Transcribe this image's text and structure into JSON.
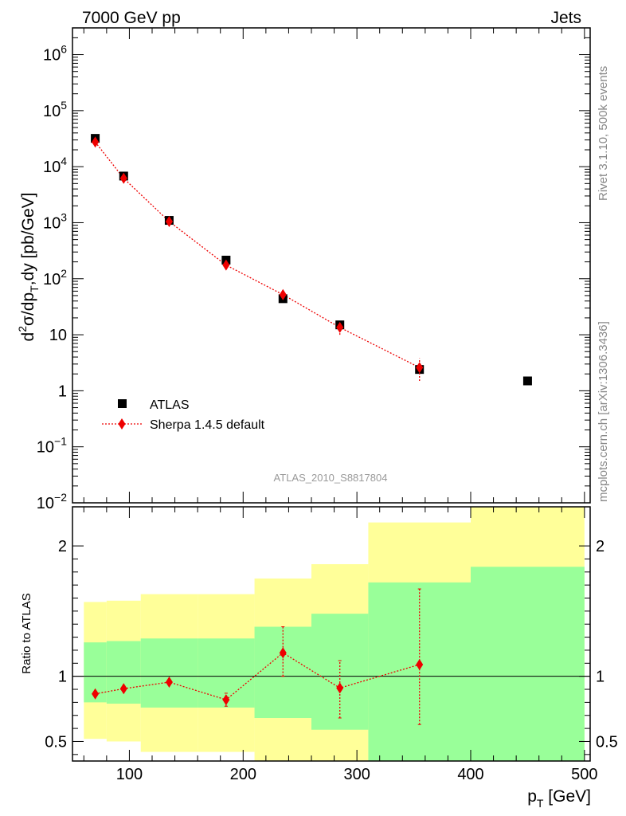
{
  "header": {
    "left": "7000 GeV pp",
    "right": "Jets"
  },
  "side": {
    "rivet": "Rivet 3.1.10,  500k events",
    "mcplots": "mcplots.cern.ch [arXiv:1306.3436]"
  },
  "analysis_label": "ATLAS_2010_S8817804",
  "colors": {
    "data": "#000000",
    "mc": "#ee0000",
    "band_outer": "#ffff99",
    "band_inner": "#99ff99"
  },
  "chart_data": [
    {
      "type": "scatter",
      "y_scale": "log",
      "ylabel": "d²σ/dp_T,dy [pb/GeV]",
      "ylim": [
        0.01,
        3000000
      ],
      "x_range": [
        50,
        505
      ],
      "y_ticks": [
        {
          "value": 1000000,
          "label": "10^6"
        },
        {
          "value": 100000,
          "label": "10^5"
        },
        {
          "value": 10000,
          "label": "10^4"
        },
        {
          "value": 1000,
          "label": "10^3"
        },
        {
          "value": 100,
          "label": "10^2"
        },
        {
          "value": 10,
          "label": "10"
        },
        {
          "value": 1,
          "label": "1"
        },
        {
          "value": 0.1,
          "label": "10^-1"
        },
        {
          "value": 0.01,
          "label": "10^-2"
        }
      ],
      "legend_position": "bottom-left",
      "series": [
        {
          "name": "ATLAS",
          "marker": "square",
          "points": [
            {
              "x": 70,
              "y": 32000
            },
            {
              "x": 95,
              "y": 6800
            },
            {
              "x": 135,
              "y": 1100
            },
            {
              "x": 185,
              "y": 215
            },
            {
              "x": 235,
              "y": 44
            },
            {
              "x": 285,
              "y": 15
            },
            {
              "x": 355,
              "y": 2.4
            },
            {
              "x": 450,
              "y": 1.5
            }
          ]
        },
        {
          "name": "Sherpa 1.4.5 default",
          "marker": "diamond",
          "line": "dotted",
          "points": [
            {
              "x": 70,
              "y": 27500,
              "ylo": 26000,
              "yhi": 29000
            },
            {
              "x": 95,
              "y": 6200,
              "ylo": 5900,
              "yhi": 6500
            },
            {
              "x": 135,
              "y": 1050,
              "ylo": 1000,
              "yhi": 1100
            },
            {
              "x": 185,
              "y": 175,
              "ylo": 160,
              "yhi": 190
            },
            {
              "x": 235,
              "y": 52,
              "ylo": 46,
              "yhi": 58
            },
            {
              "x": 285,
              "y": 13.5,
              "ylo": 10,
              "yhi": 16.5
            },
            {
              "x": 355,
              "y": 2.6,
              "ylo": 1.5,
              "yhi": 3.8
            }
          ]
        }
      ]
    },
    {
      "type": "scatter",
      "xlabel": "p_T [GeV]",
      "ylabel": "Ratio to ATLAS",
      "x_range": [
        50,
        505
      ],
      "ylim": [
        0.35,
        2.3
      ],
      "x_ticks": [
        100,
        200,
        300,
        400,
        500
      ],
      "y_ticks": [
        {
          "value": 0.5,
          "label": "0.5"
        },
        {
          "value": 1,
          "label": "1"
        },
        {
          "value": 2,
          "label": "2"
        }
      ],
      "reference_line": 1,
      "bands": [
        {
          "x0": 60,
          "x1": 80,
          "outer": [
            0.52,
            1.57
          ],
          "inner": [
            0.8,
            1.26
          ]
        },
        {
          "x0": 80,
          "x1": 110,
          "outer": [
            0.5,
            1.58
          ],
          "inner": [
            0.79,
            1.27
          ]
        },
        {
          "x0": 110,
          "x1": 160,
          "outer": [
            0.42,
            1.63
          ],
          "inner": [
            0.76,
            1.29
          ]
        },
        {
          "x0": 160,
          "x1": 210,
          "outer": [
            0.42,
            1.63
          ],
          "inner": [
            0.76,
            1.29
          ]
        },
        {
          "x0": 210,
          "x1": 260,
          "outer": [
            0.26,
            1.75
          ],
          "inner": [
            0.68,
            1.38
          ]
        },
        {
          "x0": 260,
          "x1": 310,
          "outer": [
            0.22,
            1.86
          ],
          "inner": [
            0.59,
            1.48
          ]
        },
        {
          "x0": 310,
          "x1": 400,
          "outer": [
            0.2,
            2.18
          ],
          "inner": [
            0.2,
            1.72
          ]
        },
        {
          "x0": 400,
          "x1": 500,
          "outer": [
            0.2,
            2.6
          ],
          "inner": [
            0.2,
            1.84
          ]
        }
      ],
      "series": [
        {
          "name": "Sherpa 1.4.5 default",
          "marker": "diamond",
          "line": "dotted",
          "points": [
            {
              "x": 70,
              "y": 0.865,
              "ylo": 0.845,
              "yhi": 0.885
            },
            {
              "x": 95,
              "y": 0.905,
              "ylo": 0.885,
              "yhi": 0.925
            },
            {
              "x": 135,
              "y": 0.955,
              "ylo": 0.935,
              "yhi": 0.975
            },
            {
              "x": 185,
              "y": 0.82,
              "ylo": 0.77,
              "yhi": 0.87
            },
            {
              "x": 235,
              "y": 1.18,
              "ylo": 1.0,
              "yhi": 1.38
            },
            {
              "x": 285,
              "y": 0.91,
              "ylo": 0.68,
              "yhi": 1.12
            },
            {
              "x": 355,
              "y": 1.09,
              "ylo": 0.63,
              "yhi": 1.67
            }
          ]
        }
      ]
    }
  ]
}
